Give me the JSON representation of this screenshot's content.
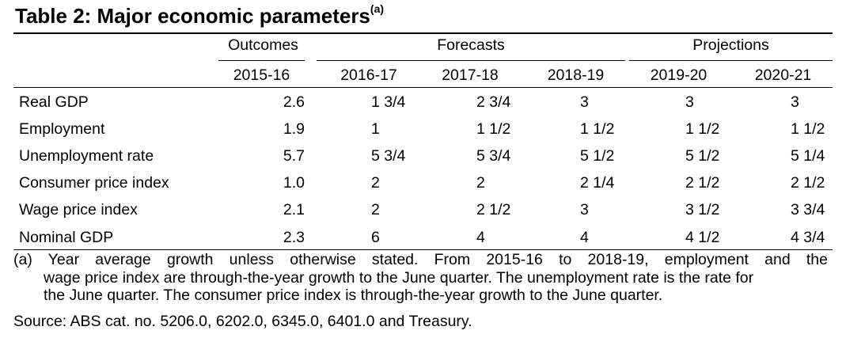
{
  "table": {
    "title": "Table 2: Major economic parameters",
    "title_note": "(a)",
    "groups": [
      "Outcomes",
      "Forecasts",
      "Projections"
    ],
    "years": [
      "2015-16",
      "2016-17",
      "2017-18",
      "2018-19",
      "2019-20",
      "2020-21"
    ],
    "rows": [
      {
        "label": "Real GDP",
        "values": [
          "2.6",
          "1 3/4",
          "2 3/4",
          "3",
          "3",
          "3"
        ]
      },
      {
        "label": "Employment",
        "values": [
          "1.9",
          "1",
          "1 1/2",
          "1 1/2",
          "1 1/2",
          "1 1/2"
        ]
      },
      {
        "label": "Unemployment rate",
        "values": [
          "5.7",
          "5 3/4",
          "5 3/4",
          "5 1/2",
          "5 1/2",
          "5 1/4"
        ]
      },
      {
        "label": "Consumer price index",
        "values": [
          "1.0",
          "2",
          "2",
          "2 1/4",
          "2 1/2",
          "2 1/2"
        ]
      },
      {
        "label": "Wage price index",
        "values": [
          "2.1",
          "2",
          "2 1/2",
          "3",
          "3 1/2",
          "3 3/4"
        ]
      },
      {
        "label": "Nominal GDP",
        "values": [
          "2.3",
          "6",
          "4",
          "4",
          "4 1/2",
          "4 3/4"
        ]
      }
    ]
  },
  "footnote": {
    "line1": "(a) Year average growth unless otherwise stated. From 2015-16 to 2018-19, employment and the",
    "line2": "wage price index are through-the-year growth to the June quarter. The unemployment rate is the rate for",
    "line3": "the June quarter. The consumer price index is through-the-year growth to the June quarter."
  },
  "source": "Source: ABS cat. no. 5206.0, 6202.0, 6345.0, 6401.0 and Treasury."
}
